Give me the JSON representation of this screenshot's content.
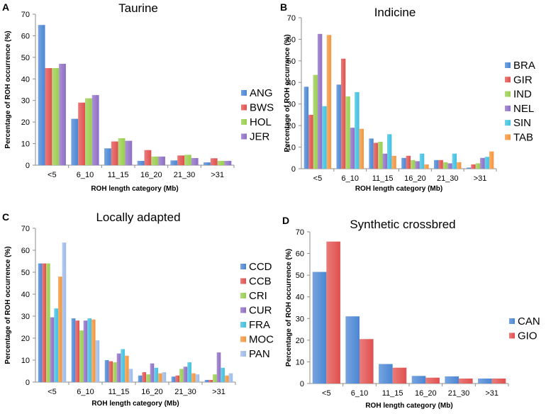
{
  "chart_data": [
    {
      "panel": "A",
      "type": "bar",
      "title": "Taurine",
      "xlabel": "ROH length category (Mb)",
      "ylabel": "Percentage of ROH occurrence (%)",
      "ylim": [
        0,
        70
      ],
      "yticks": [
        0,
        10,
        20,
        30,
        40,
        50,
        60,
        70
      ],
      "categories": [
        "<5",
        "6_10",
        "11_15",
        "16_20",
        "21_30",
        ">31"
      ],
      "legend_position": "right",
      "series": [
        {
          "name": "ANG",
          "color": "#4a86d4",
          "values": [
            65,
            21.5,
            7.8,
            2,
            2.2,
            1.3
          ]
        },
        {
          "name": "BWS",
          "color": "#e0504e",
          "values": [
            45,
            29,
            11,
            7,
            4.5,
            3.2
          ]
        },
        {
          "name": "HOL",
          "color": "#9acd4f",
          "values": [
            45,
            31,
            12.5,
            4,
            4.8,
            2
          ]
        },
        {
          "name": "JER",
          "color": "#8e6ec4",
          "values": [
            47,
            32.5,
            11.3,
            4,
            3.3,
            2
          ]
        }
      ]
    },
    {
      "panel": "B",
      "type": "bar",
      "title": "Indicine",
      "xlabel": "ROH length category (Mb)",
      "ylabel": "Percentage of ROH occurrence (%)",
      "ylim": [
        0,
        70
      ],
      "yticks": [
        0,
        10,
        20,
        30,
        40,
        50,
        60,
        70
      ],
      "categories": [
        "<5",
        "6_10",
        "11_15",
        "16_20",
        "21_30",
        ">31"
      ],
      "legend_position": "right",
      "series": [
        {
          "name": "BRA",
          "color": "#4a86d4",
          "values": [
            38,
            39,
            14,
            5,
            4,
            0.5
          ]
        },
        {
          "name": "GIR",
          "color": "#e0504e",
          "values": [
            25,
            51,
            12,
            6,
            4,
            2
          ]
        },
        {
          "name": "IND",
          "color": "#9acd4f",
          "values": [
            43.5,
            33.5,
            12.5,
            4,
            3,
            2.5
          ]
        },
        {
          "name": "NEL",
          "color": "#8e6ec4",
          "values": [
            62.5,
            19,
            7,
            3.5,
            2.5,
            5
          ]
        },
        {
          "name": "SIN",
          "color": "#3fc0e0",
          "values": [
            29,
            35.5,
            16,
            7,
            7,
            5.5
          ]
        },
        {
          "name": "TAB",
          "color": "#f3953c",
          "values": [
            62,
            18.5,
            6,
            2,
            3,
            8
          ]
        }
      ]
    },
    {
      "panel": "C",
      "type": "bar",
      "title": "Locally adapted",
      "xlabel": "ROH length category (Mb)",
      "ylabel": "Percentage of ROH occurrence (%)",
      "ylim": [
        0,
        70
      ],
      "yticks": [
        0,
        10,
        20,
        30,
        40,
        50,
        60,
        70
      ],
      "categories": [
        "<5",
        "6_10",
        "11_15",
        "16_20",
        "21_30",
        ">31"
      ],
      "legend_position": "right",
      "series": [
        {
          "name": "CCD",
          "color": "#4a86d4",
          "values": [
            54,
            29,
            10,
            3,
            2.5,
            1
          ]
        },
        {
          "name": "CCB",
          "color": "#e0504e",
          "values": [
            54,
            28,
            9.5,
            4.5,
            3,
            1
          ]
        },
        {
          "name": "CRI",
          "color": "#9acd4f",
          "values": [
            54,
            23.5,
            9,
            3.5,
            6,
            3.5
          ]
        },
        {
          "name": "CUR",
          "color": "#8e6ec4",
          "values": [
            29.5,
            28,
            13,
            8.5,
            7,
            13.5
          ]
        },
        {
          "name": "FRA",
          "color": "#3fc0e0",
          "values": [
            33.5,
            29,
            15,
            6.5,
            9,
            6.5
          ]
        },
        {
          "name": "MOC",
          "color": "#f3953c",
          "values": [
            48,
            28.5,
            12,
            4,
            4,
            3
          ]
        },
        {
          "name": "PAN",
          "color": "#9dbbe8",
          "values": [
            63.5,
            19,
            6,
            4.5,
            3.5,
            4
          ]
        }
      ]
    },
    {
      "panel": "D",
      "type": "bar",
      "title": "Synthetic crossbred",
      "xlabel": "ROH length category (Mb)",
      "ylabel": "Percentage of ROH occurrence (%)",
      "ylim": [
        0,
        70
      ],
      "yticks": [
        0,
        10,
        20,
        30,
        40,
        50,
        60,
        70
      ],
      "categories": [
        "<5",
        "6_10",
        "11_15",
        "16_20",
        "21_30",
        ">31"
      ],
      "legend_position": "right",
      "series": [
        {
          "name": "CAN",
          "color": "#4a86d4",
          "values": [
            51.5,
            31,
            9,
            3.5,
            3.3,
            2.3
          ]
        },
        {
          "name": "GIO",
          "color": "#e0504e",
          "values": [
            65.5,
            20.5,
            7.3,
            2.7,
            2.3,
            2.3
          ]
        }
      ]
    }
  ]
}
